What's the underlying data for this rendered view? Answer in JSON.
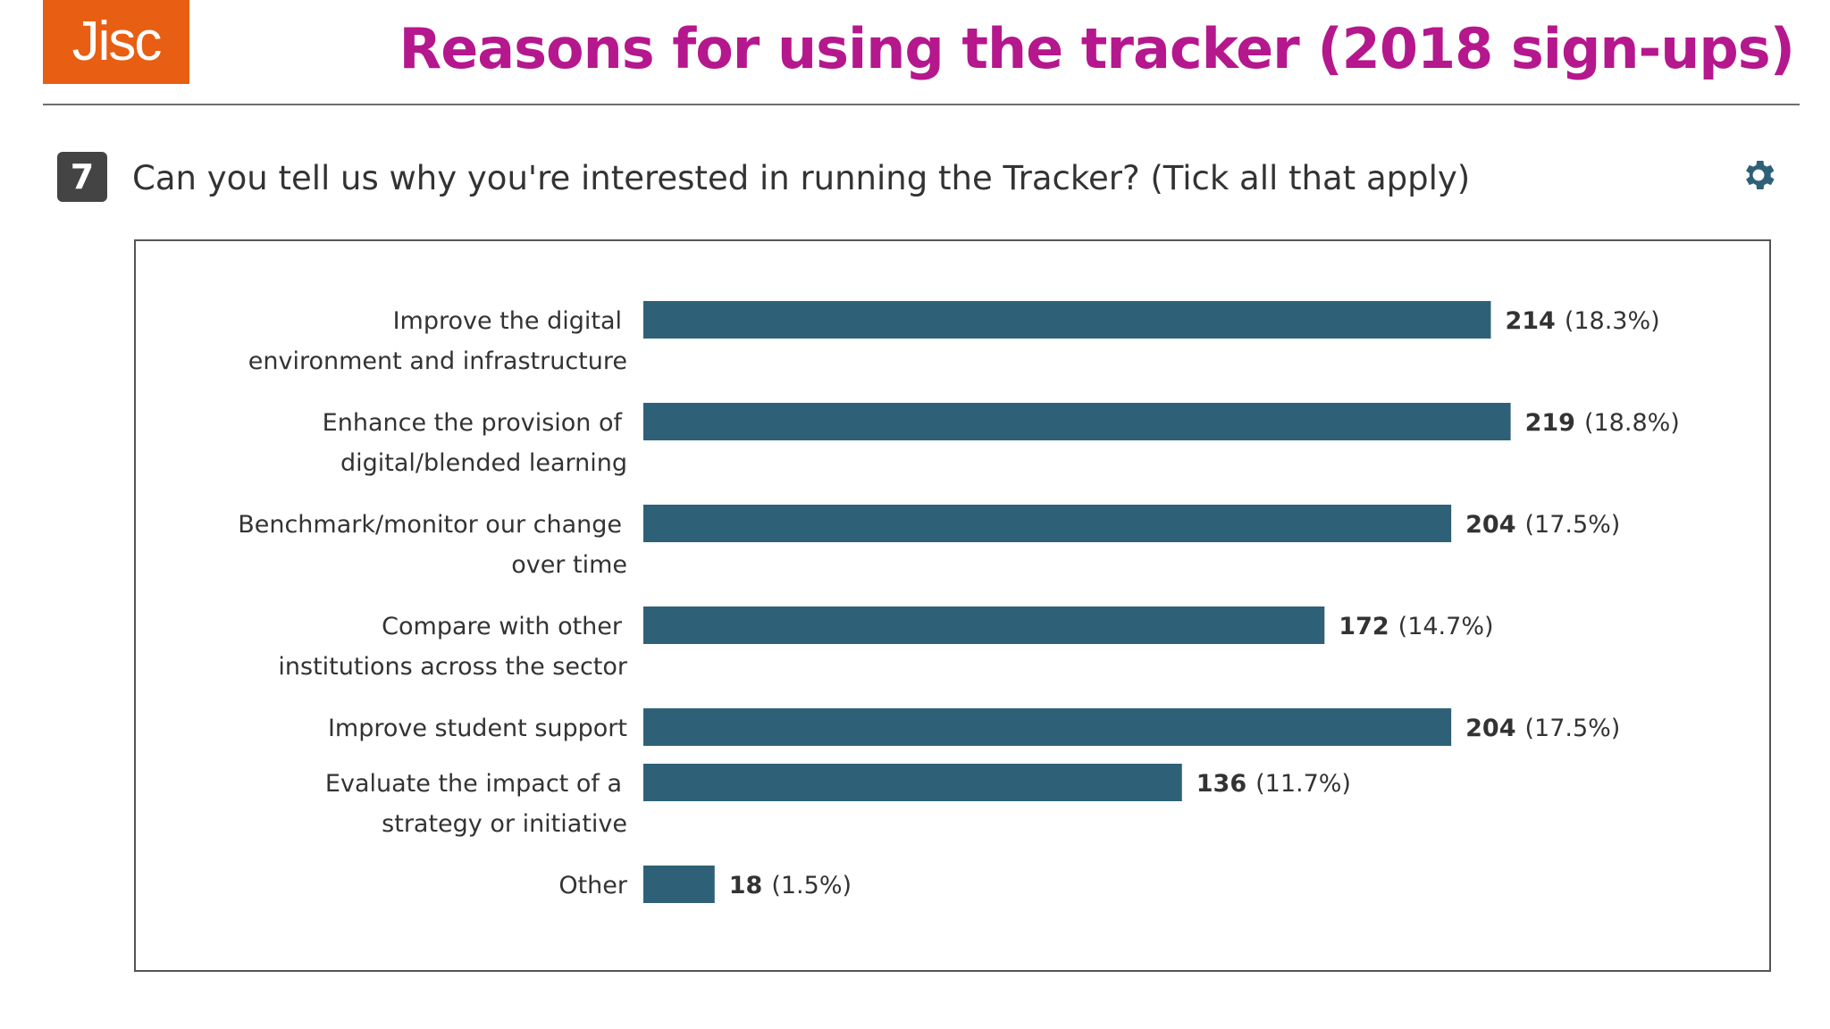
{
  "header": {
    "logo_text": "Jisc",
    "title": "Reasons for using the  tracker (2018 sign-ups)"
  },
  "question": {
    "number": "7",
    "text": "Can you tell us why you're interested in running the Tracker? (Tick all that apply)",
    "settings_icon": "gear-icon"
  },
  "colors": {
    "logo_bg": "#e85e13",
    "title": "#b5178d",
    "bar": "#2e6178"
  },
  "chart_data": {
    "type": "bar",
    "orientation": "horizontal",
    "categories": [
      "Improve the digital environment and infrastructure",
      "Enhance the provision of digital/blended learning",
      "Benchmark/monitor our change over time",
      "Compare with other institutions across the sector",
      "Improve student support",
      "Evaluate the impact of a strategy or initiative",
      "Other"
    ],
    "category_lines": [
      [
        "Improve the digital",
        "environment and infrastructure"
      ],
      [
        "Enhance the provision of",
        "digital/blended learning"
      ],
      [
        "Benchmark/monitor our change",
        "over time"
      ],
      [
        "Compare with other",
        "institutions across the sector"
      ],
      [
        "Improve student support"
      ],
      [
        "Evaluate the impact of a",
        "strategy or initiative"
      ],
      [
        "Other"
      ]
    ],
    "values": [
      214,
      219,
      204,
      172,
      204,
      136,
      18
    ],
    "percent_labels": [
      "(18.3%)",
      "(18.8%)",
      "(17.5%)",
      "(14.7%)",
      "(17.5%)",
      "(11.7%)",
      "(1.5%)"
    ],
    "grid": false,
    "legend": "none"
  }
}
